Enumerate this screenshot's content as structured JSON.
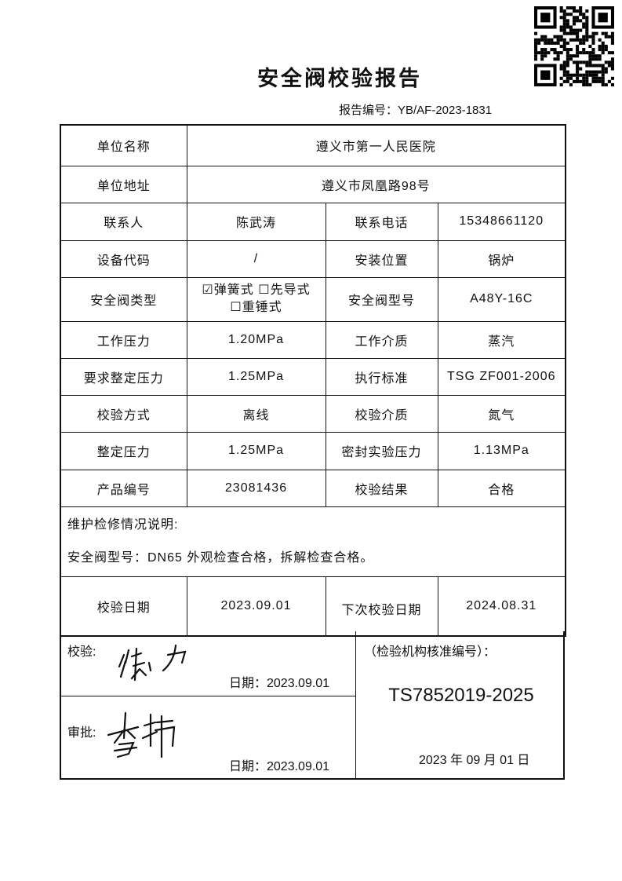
{
  "title": "安全阀校验报告",
  "report_no": "报告编号：YB/AF-2023-1831",
  "rows": {
    "unit_name": {
      "label": "单位名称",
      "value": "遵义市第一人民医院"
    },
    "unit_address": {
      "label": "单位地址",
      "value": "遵义市凤凰路98号"
    },
    "contact": {
      "label": "联系人",
      "value": "陈武涛",
      "label2": "联系电话",
      "value2": "15348661120"
    },
    "device_code": {
      "label": "设备代码",
      "value": "/",
      "label2": "安装位置",
      "value2": "锅炉"
    },
    "valve_type": {
      "label": "安全阀类型",
      "options": [
        {
          "label": "弹簧式",
          "checked": true
        },
        {
          "label": "先导式",
          "checked": false
        },
        {
          "label": "重锤式",
          "checked": false
        }
      ],
      "label2": "安全阀型号",
      "value2": "A48Y-16C"
    },
    "work_pressure": {
      "label": "工作压力",
      "value": "1.20MPa",
      "label2": "工作介质",
      "value2": "蒸汽"
    },
    "required_set_pressure": {
      "label": "要求整定压力",
      "value": "1.25MPa",
      "label2": "执行标准",
      "value2": "TSG ZF001-2006"
    },
    "method": {
      "label": "校验方式",
      "value": "离线",
      "label2": "校验介质",
      "value2": "氮气"
    },
    "set_pressure": {
      "label": "整定压力",
      "value": "1.25MPa",
      "label2": "密封实验压力",
      "value2": "1.13MPa"
    },
    "product_no": {
      "label": "产品编号",
      "value": "23081436",
      "label2": "校验结果",
      "value2": "合格"
    }
  },
  "notes": {
    "heading": "维护检修情况说明:",
    "text": "安全阀型号：DN65 外观检查合格，拆解检查合格。"
  },
  "dates": {
    "label": "校验日期",
    "value": "2023.09.01",
    "label2": "下次校验日期",
    "value2": "2024.08.31"
  },
  "verify": {
    "label": "校验:",
    "signature": "徐力",
    "date": "日期：2023.09.01"
  },
  "approve": {
    "label": "审批:",
    "signature": "李玮",
    "date": "日期：2023.09.01"
  },
  "agency": {
    "label": "（检验机构核准编号）：",
    "code": "TS7852019-2025",
    "date": "2023 年 09 月 01 日"
  }
}
